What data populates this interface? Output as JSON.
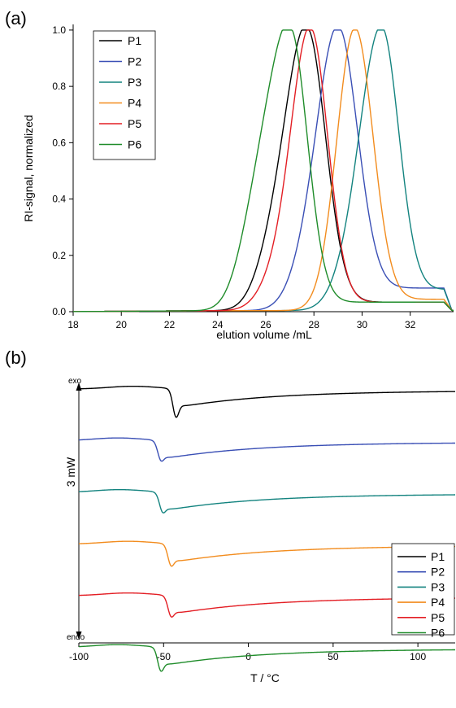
{
  "chart_data": [
    {
      "panel": "(a)",
      "type": "line",
      "xlabel": "elution volume /mL",
      "ylabel": "RI-signal, normalized",
      "xlim": [
        18,
        33.8
      ],
      "ylim": [
        0,
        1.02
      ],
      "xticks": [
        18,
        20,
        22,
        24,
        26,
        28,
        30,
        32
      ],
      "yticks": [
        0.0,
        0.2,
        0.4,
        0.6,
        0.8,
        1.0
      ],
      "ytick_labels": [
        "0.0",
        "0.2",
        "0.4",
        "0.6",
        "0.8",
        "1.0"
      ],
      "legend_position": "top-left",
      "series": [
        {
          "name": "P1",
          "color": "#000000",
          "peak": 27.7,
          "wl": 0.9,
          "wr": 0.78,
          "shoulder": 0.12,
          "tail": 0.03
        },
        {
          "name": "P2",
          "color": "#3a4fb5",
          "peak": 29.0,
          "wl": 0.9,
          "wr": 0.8,
          "shoulder": 0.06,
          "tail": 0.08
        },
        {
          "name": "P3",
          "color": "#13837f",
          "peak": 30.8,
          "wl": 0.9,
          "wr": 0.72,
          "shoulder": 0.05,
          "tail": 0.075
        },
        {
          "name": "P4",
          "color": "#f28c1e",
          "peak": 29.7,
          "wl": 0.75,
          "wr": 0.75,
          "shoulder": 0.0,
          "tail": 0.04
        },
        {
          "name": "P5",
          "color": "#e31e24",
          "peak": 27.85,
          "wl": 0.8,
          "wr": 0.72,
          "shoulder": 0.08,
          "tail": 0.03
        },
        {
          "name": "P6",
          "color": "#1f8c2a",
          "peak": 27.0,
          "wl": 0.95,
          "wr": 0.72,
          "shoulder": 0.2,
          "tail": 0.03
        }
      ]
    },
    {
      "panel": "(b)",
      "type": "line",
      "xlabel": "T / °C",
      "xlim": [
        -100,
        122
      ],
      "xticks": [
        -100,
        -50,
        0,
        50,
        100
      ],
      "scale_bar_label": "3 mW",
      "exo_label": "exo",
      "endo_label": "endo",
      "legend_position": "bottom-right",
      "series": [
        {
          "name": "P1",
          "color": "#000000",
          "offset": 0.0,
          "dip_center": -43,
          "dip_depth": 1.0
        },
        {
          "name": "P2",
          "color": "#3a4fb5",
          "offset": 1.0,
          "dip_center": -52,
          "dip_depth": 0.55
        },
        {
          "name": "P3",
          "color": "#13837f",
          "offset": 2.0,
          "dip_center": -51,
          "dip_depth": 0.55
        },
        {
          "name": "P4",
          "color": "#f28c1e",
          "offset": 3.0,
          "dip_center": -46,
          "dip_depth": 0.65
        },
        {
          "name": "P5",
          "color": "#e31e24",
          "offset": 4.0,
          "dip_center": -46,
          "dip_depth": 0.6
        },
        {
          "name": "P6",
          "color": "#1f8c2a",
          "offset": 5.0,
          "dip_center": -52,
          "dip_depth": 0.75
        }
      ]
    }
  ]
}
